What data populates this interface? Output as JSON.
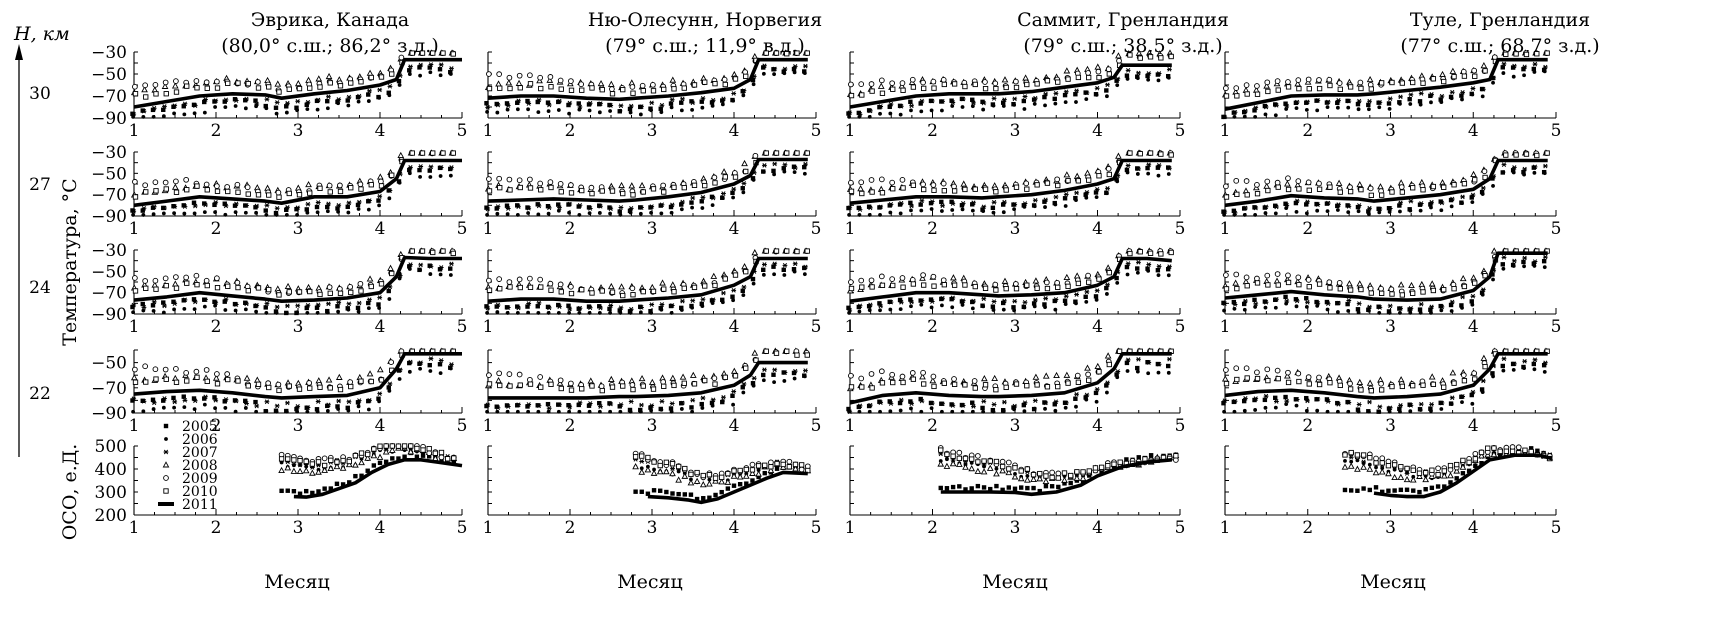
{
  "figure": {
    "y_axis_title": "Температура, °С",
    "x_axis_title": "Месяц",
    "ozone_axis_title": "ОСО, е.Д.",
    "height_axis_title": "H, км",
    "heights": [
      "30",
      "27",
      "24",
      "22"
    ]
  },
  "sites": [
    {
      "name": "Эврика, Канада",
      "coords": "(80,0° с.ш.; 86,2° з.д.)"
    },
    {
      "name": "Ню-Олесунн, Норвегия",
      "coords": "(79° с.ш.; 11,9° в.д.)"
    },
    {
      "name": "Саммит, Гренландия",
      "coords": "(79° с.ш.; 38,5° з.д.)"
    },
    {
      "name": "Туле, Гренландия",
      "coords": "(77° с.ш.; 68,7° з.д.)"
    }
  ],
  "legend": {
    "years": [
      "2005",
      "2006",
      "2007",
      "2008",
      "2009",
      "2010",
      "2011"
    ],
    "markers": [
      "square-filled",
      "circle-filled-small",
      "asterisk",
      "triangle-open",
      "circle-open",
      "square-open",
      "thick-line"
    ]
  },
  "chart_data": {
    "type": "line",
    "x_ticks": [
      "1",
      "2",
      "3",
      "4",
      "5"
    ],
    "temperature_panels": [
      {
        "height": "30",
        "ylim": [
          -90,
          -30
        ],
        "y_ticks": [
          "−30",
          "−50",
          "−70",
          "−90"
        ]
      },
      {
        "height": "27",
        "ylim": [
          -90,
          -30
        ],
        "y_ticks": [
          "−30",
          "−50",
          "−70",
          "−90"
        ]
      },
      {
        "height": "24",
        "ylim": [
          -90,
          -30
        ],
        "y_ticks": [
          "−30",
          "−50",
          "−70",
          "−90"
        ]
      },
      {
        "height": "22",
        "ylim": [
          -90,
          -40
        ],
        "y_ticks": [
          "−50",
          "−70",
          "−90"
        ]
      }
    ],
    "ozone_panel": {
      "ylim": [
        200,
        500
      ],
      "y_ticks": [
        "500",
        "400",
        "300",
        "200"
      ]
    },
    "series_2011": {
      "temperature": [
        [
          {
            "x": [
              1,
              1.4,
              1.8,
              2.2,
              2.6,
              2.8,
              3.2,
              3.6,
              4.0,
              4.2,
              4.3,
              4.6,
              5.0
            ],
            "y": [
              -80,
              -75,
              -70,
              -68,
              -69,
              -72,
              -68,
              -65,
              -60,
              -55,
              -37,
              -37,
              -37
            ]
          },
          {
            "x": [
              1,
              1.4,
              1.8,
              2.2,
              2.6,
              2.8,
              3.2,
              3.6,
              4.0,
              4.2,
              4.3,
              4.6,
              4.9
            ],
            "y": [
              -72,
              -70,
              -70,
              -72,
              -73,
              -72,
              -70,
              -67,
              -63,
              -55,
              -37,
              -37,
              -37
            ]
          },
          {
            "x": [
              1,
              1.4,
              1.8,
              2.2,
              2.6,
              2.8,
              3.2,
              3.6,
              4.0,
              4.2,
              4.3,
              4.6,
              4.9
            ],
            "y": [
              -80,
              -75,
              -70,
              -68,
              -68,
              -68,
              -66,
              -62,
              -58,
              -53,
              -42,
              -42,
              -42
            ]
          },
          {
            "x": [
              1,
              1.4,
              1.8,
              2.2,
              2.6,
              2.8,
              3.2,
              3.6,
              4.0,
              4.2,
              4.3,
              4.6,
              4.9
            ],
            "y": [
              -82,
              -76,
              -70,
              -69,
              -69,
              -68,
              -65,
              -62,
              -58,
              -55,
              -37,
              -37,
              -37
            ]
          }
        ],
        [
          {
            "x": [
              1,
              1.4,
              1.8,
              2.2,
              2.6,
              2.8,
              3.2,
              3.6,
              4.0,
              4.2,
              4.3,
              4.6,
              5.0
            ],
            "y": [
              -80,
              -76,
              -72,
              -74,
              -76,
              -78,
              -72,
              -72,
              -67,
              -55,
              -38,
              -38,
              -38
            ]
          },
          {
            "x": [
              1,
              1.4,
              1.8,
              2.2,
              2.6,
              2.8,
              3.2,
              3.6,
              4.0,
              4.2,
              4.3,
              4.6,
              4.9
            ],
            "y": [
              -76,
              -75,
              -74,
              -75,
              -76,
              -75,
              -72,
              -68,
              -60,
              -52,
              -37,
              -37,
              -37
            ]
          },
          {
            "x": [
              1,
              1.4,
              1.8,
              2.2,
              2.6,
              2.8,
              3.2,
              3.6,
              4.0,
              4.2,
              4.3,
              4.6,
              4.9
            ],
            "y": [
              -78,
              -75,
              -72,
              -72,
              -73,
              -72,
              -70,
              -66,
              -60,
              -55,
              -38,
              -38,
              -38
            ]
          },
          {
            "x": [
              1,
              1.4,
              1.8,
              2.2,
              2.6,
              2.8,
              3.2,
              3.6,
              4.0,
              4.2,
              4.3,
              4.6,
              4.9
            ],
            "y": [
              -80,
              -76,
              -71,
              -73,
              -74,
              -76,
              -73,
              -70,
              -65,
              -55,
              -38,
              -38,
              -38
            ]
          }
        ],
        [
          {
            "x": [
              1,
              1.4,
              1.8,
              2.2,
              2.6,
              2.8,
              3.2,
              3.6,
              4.0,
              4.2,
              4.3,
              4.6,
              5.0
            ],
            "y": [
              -77,
              -74,
              -70,
              -73,
              -76,
              -78,
              -77,
              -75,
              -70,
              -55,
              -37,
              -38,
              -38
            ]
          },
          {
            "x": [
              1,
              1.4,
              1.8,
              2.2,
              2.6,
              2.8,
              3.2,
              3.6,
              4.0,
              4.2,
              4.3,
              4.6,
              4.9
            ],
            "y": [
              -78,
              -76,
              -76,
              -78,
              -78,
              -77,
              -75,
              -72,
              -63,
              -55,
              -38,
              -38,
              -38
            ]
          },
          {
            "x": [
              1,
              1.4,
              1.8,
              2.2,
              2.6,
              2.8,
              3.2,
              3.6,
              4.0,
              4.2,
              4.3,
              4.6,
              4.9
            ],
            "y": [
              -78,
              -74,
              -70,
              -70,
              -72,
              -73,
              -72,
              -70,
              -63,
              -55,
              -38,
              -38,
              -40
            ]
          },
          {
            "x": [
              1,
              1.4,
              1.8,
              2.2,
              2.6,
              2.8,
              3.2,
              3.6,
              4.0,
              4.2,
              4.3,
              4.6,
              4.9
            ],
            "y": [
              -75,
              -72,
              -69,
              -72,
              -74,
              -76,
              -77,
              -76,
              -68,
              -55,
              -33,
              -33,
              -33
            ]
          }
        ],
        [
          {
            "x": [
              1,
              1.4,
              1.8,
              2.2,
              2.6,
              2.8,
              3.2,
              3.6,
              4.0,
              4.2,
              4.3,
              4.6,
              5.0
            ],
            "y": [
              -75,
              -73,
              -72,
              -74,
              -77,
              -78,
              -77,
              -76,
              -70,
              -55,
              -43,
              -43,
              -43
            ]
          },
          {
            "x": [
              1,
              1.4,
              1.8,
              2.2,
              2.6,
              2.8,
              3.2,
              3.6,
              4.0,
              4.2,
              4.3,
              4.6,
              4.9
            ],
            "y": [
              -78,
              -78,
              -78,
              -78,
              -77,
              -77,
              -76,
              -74,
              -68,
              -60,
              -50,
              -50,
              -50
            ]
          },
          {
            "x": [
              1,
              1.4,
              1.8,
              2.2,
              2.6,
              2.8,
              3.2,
              3.6,
              4.0,
              4.2,
              4.3,
              4.6,
              4.9
            ],
            "y": [
              -82,
              -76,
              -74,
              -76,
              -77,
              -77,
              -76,
              -74,
              -66,
              -55,
              -43,
              -43,
              -43
            ]
          },
          {
            "x": [
              1,
              1.4,
              1.8,
              2.2,
              2.6,
              2.8,
              3.2,
              3.6,
              4.0,
              4.2,
              4.3,
              4.6,
              4.9
            ],
            "y": [
              -76,
              -73,
              -72,
              -74,
              -77,
              -78,
              -77,
              -75,
              -68,
              -55,
              -43,
              -43,
              -43
            ]
          }
        ]
      ],
      "ozone": [
        {
          "x": [
            2.95,
            3.1,
            3.3,
            3.5,
            3.7,
            3.9,
            4.1,
            4.3,
            4.5,
            4.7,
            5.0
          ],
          "y": [
            280,
            278,
            290,
            315,
            340,
            385,
            420,
            440,
            440,
            430,
            415
          ]
        },
        {
          "x": [
            2.95,
            3.2,
            3.45,
            3.6,
            3.8,
            4.0,
            4.2,
            4.4,
            4.6,
            4.9
          ],
          "y": [
            280,
            275,
            265,
            255,
            270,
            300,
            330,
            360,
            385,
            380
          ]
        },
        {
          "x": [
            2.1,
            2.4,
            2.7,
            3.0,
            3.2,
            3.5,
            3.8,
            4.0,
            4.3,
            4.6,
            4.9
          ],
          "y": [
            300,
            300,
            300,
            298,
            290,
            300,
            330,
            370,
            410,
            430,
            440
          ]
        },
        {
          "x": [
            2.8,
            3.0,
            3.2,
            3.4,
            3.6,
            3.8,
            4.0,
            4.2,
            4.5,
            4.8,
            4.95
          ],
          "y": [
            295,
            285,
            280,
            280,
            300,
            340,
            390,
            440,
            460,
            460,
            445
          ]
        }
      ]
    }
  }
}
